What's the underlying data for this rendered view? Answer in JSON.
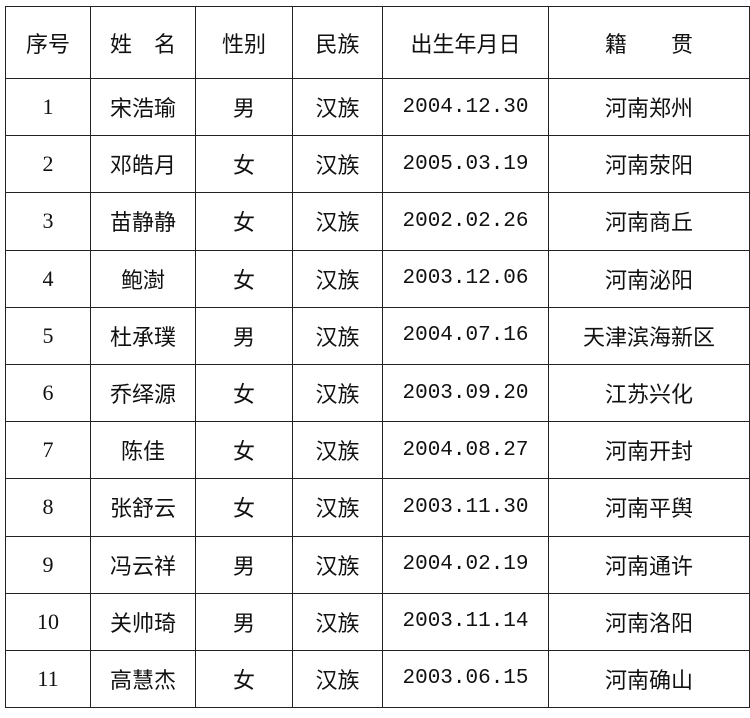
{
  "headers": [
    "序号",
    "姓　名",
    "性别",
    "民族",
    "出生年月日",
    "籍　　贯"
  ],
  "rows": [
    {
      "no": "1",
      "name": "宋浩瑜",
      "gender": "男",
      "ethnicity": "汉族",
      "birth": "2004.12.30",
      "native": "河南郑州"
    },
    {
      "no": "2",
      "name": "邓皓月",
      "gender": "女",
      "ethnicity": "汉族",
      "birth": "2005.03.19",
      "native": "河南荥阳"
    },
    {
      "no": "3",
      "name": "苗静静",
      "gender": "女",
      "ethnicity": "汉族",
      "birth": "2002.02.26",
      "native": "河南商丘"
    },
    {
      "no": "4",
      "name": "鲍澍",
      "gender": "女",
      "ethnicity": "汉族",
      "birth": "2003.12.06",
      "native": "河南泌阳"
    },
    {
      "no": "5",
      "name": "杜承璞",
      "gender": "男",
      "ethnicity": "汉族",
      "birth": "2004.07.16",
      "native": "天津滨海新区"
    },
    {
      "no": "6",
      "name": "乔绎源",
      "gender": "女",
      "ethnicity": "汉族",
      "birth": "2003.09.20",
      "native": "江苏兴化"
    },
    {
      "no": "7",
      "name": "陈佳",
      "gender": "女",
      "ethnicity": "汉族",
      "birth": "2004.08.27",
      "native": "河南开封"
    },
    {
      "no": "8",
      "name": "张舒云",
      "gender": "女",
      "ethnicity": "汉族",
      "birth": "2003.11.30",
      "native": "河南平舆"
    },
    {
      "no": "9",
      "name": "冯云祥",
      "gender": "男",
      "ethnicity": "汉族",
      "birth": "2004.02.19",
      "native": "河南通许"
    },
    {
      "no": "10",
      "name": "关帅琦",
      "gender": "男",
      "ethnicity": "汉族",
      "birth": "2003.11.14",
      "native": "河南洛阳"
    },
    {
      "no": "11",
      "name": "高慧杰",
      "gender": "女",
      "ethnicity": "汉族",
      "birth": "2003.06.15",
      "native": "河南确山"
    }
  ]
}
